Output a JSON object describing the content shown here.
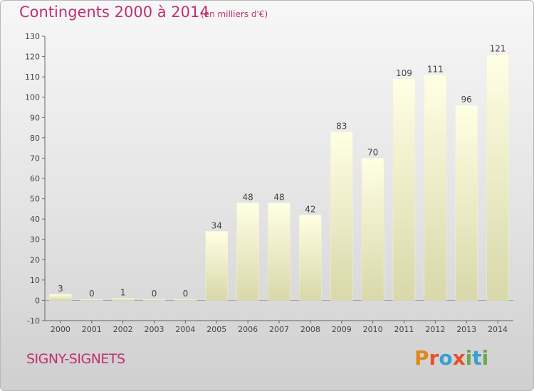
{
  "header": {
    "title": "Contingents 2000 à 2014",
    "subtitle": "(en milliers d'€)"
  },
  "footer": {
    "place": "SIGNY-SIGNETS",
    "logo_text": "Proxiti",
    "logo_colors": [
      "#e2871b",
      "#e84f2c",
      "#37a0d6",
      "#e84f2c",
      "#6aa84f",
      "#37a0d6",
      "#6aa84f"
    ]
  },
  "chart_data": {
    "type": "bar",
    "title": "Contingents 2000 à 2014",
    "subtitle": "(en milliers d'€)",
    "categories": [
      "2000",
      "2001",
      "2002",
      "2003",
      "2004",
      "2005",
      "2006",
      "2007",
      "2008",
      "2009",
      "2010",
      "2011",
      "2012",
      "2013",
      "2014"
    ],
    "values": [
      3,
      0,
      1,
      0,
      0,
      34,
      48,
      48,
      42,
      83,
      70,
      109,
      111,
      96,
      121
    ],
    "ylim": [
      -10,
      130
    ],
    "yticks": [
      -10,
      0,
      10,
      20,
      30,
      40,
      50,
      60,
      70,
      80,
      90,
      100,
      110,
      120,
      130
    ],
    "xlabel": "",
    "ylabel": "",
    "grid": false,
    "bar_color_top": "#ffffe4",
    "bar_color_bottom": "#d8d8aa"
  }
}
